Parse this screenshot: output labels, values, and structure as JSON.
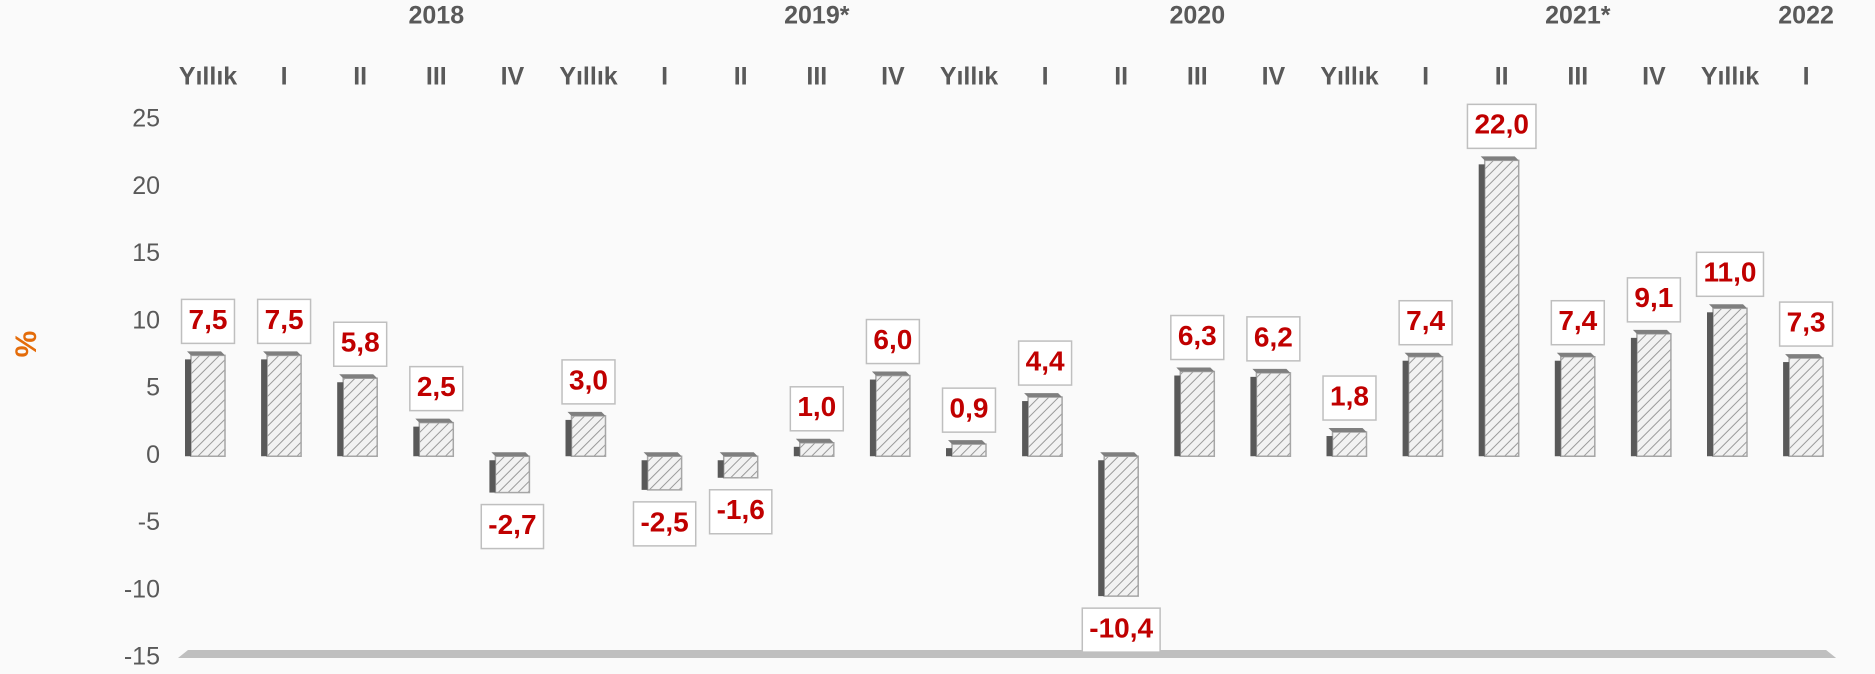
{
  "chart_data": {
    "type": "bar",
    "y_label": "%",
    "group_labels": [
      null,
      null,
      null,
      "2018",
      null,
      null,
      null,
      null,
      "2019*",
      null,
      null,
      null,
      null,
      "2020",
      null,
      null,
      null,
      null,
      "2021*",
      null,
      null,
      "2022"
    ],
    "categories": [
      "Yıllık",
      "I",
      "II",
      "III",
      "IV",
      "Yıllık",
      "I",
      "II",
      "III",
      "IV",
      "Yıllık",
      "I",
      "II",
      "III",
      "IV",
      "Yıllık",
      "I",
      "II",
      "III",
      "IV",
      "Yıllık",
      "I"
    ],
    "values": [
      7.5,
      7.5,
      5.8,
      2.5,
      -2.7,
      3.0,
      -2.5,
      -1.6,
      1.0,
      6.0,
      0.9,
      4.4,
      -10.4,
      6.3,
      6.2,
      1.8,
      7.4,
      22.0,
      7.4,
      9.1,
      11.0,
      7.3
    ],
    "value_labels": [
      "7,5",
      "7,5",
      "5,8",
      "2,5",
      "-2,7",
      "3,0",
      "-2,5",
      "-1,6",
      "1,0",
      "6,0",
      "0,9",
      "4,4",
      "-10,4",
      "6,3",
      "6,2",
      "1,8",
      "7,4",
      "22,0",
      "7,4",
      "9,1",
      "11,0",
      "7,3"
    ],
    "color": "#a6a6a6",
    "ylim": [
      -15,
      25
    ],
    "yticks": [
      -15,
      -10,
      -5,
      0,
      5,
      10,
      15,
      20,
      25
    ],
    "grid": false
  }
}
